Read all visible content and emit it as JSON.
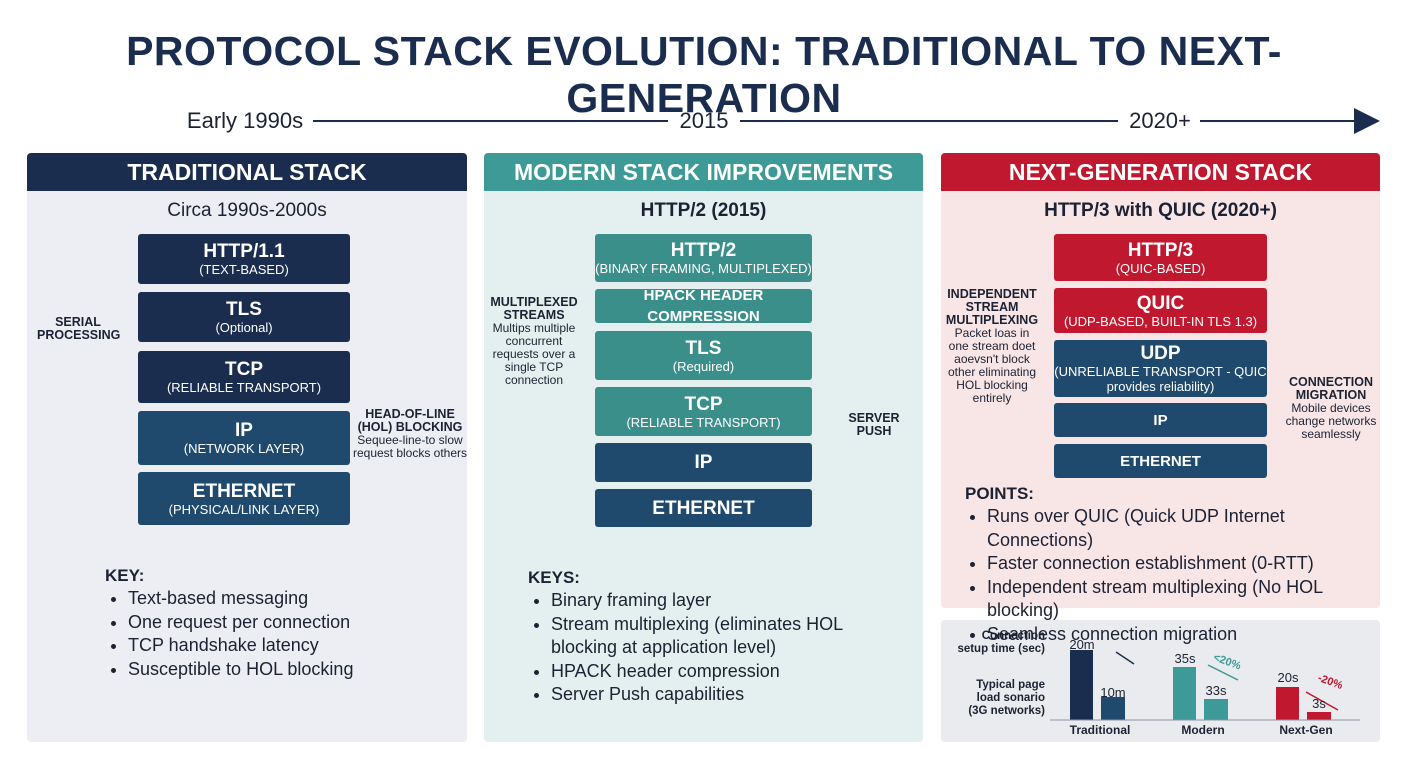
{
  "title": "PROTOCOL STACK EVOLUTION: TRADITIONAL TO NEXT-GENERATION",
  "timeline": [
    "Early 1990s",
    "2015",
    "2020+"
  ],
  "panels": [
    {
      "header": "TRADITIONAL STACK",
      "subtitle": "Circa 1990s-2000s",
      "layers": [
        {
          "name": "HTTP/1.1",
          "desc": "(TEXT-BASED)"
        },
        {
          "name": "TLS",
          "desc": "(Optional)"
        },
        {
          "name": "TCP",
          "desc": "(RELIABLE TRANSPORT)"
        },
        {
          "name": "IP",
          "desc": "(NETWORK LAYER)"
        },
        {
          "name": "ETHERNET",
          "desc": "(PHYSICAL/LINK LAYER)"
        }
      ],
      "left_note": {
        "title": "SERIAL PROCESSING"
      },
      "right_note": {
        "title": "HEAD-OF-LINE (HOL) BLOCKING",
        "text": "Sequee-line-to slow request blocks others"
      },
      "key_title": "KEY:",
      "key_items": [
        "Text-based messaging",
        "One request per connection",
        "TCP handshake latency",
        "Susceptible to HOL blocking"
      ]
    },
    {
      "header": "MODERN STACK IMPROVEMENTS",
      "subtitle": "HTTP/2 (2015)",
      "layers": [
        {
          "name": "HTTP/2",
          "desc": "(BINARY FRAMING, MULTIPLEXED)"
        },
        {
          "name": "HPACK HEADER COMPRESSION"
        },
        {
          "name": "TLS",
          "desc": "(Required)"
        },
        {
          "name": "TCP",
          "desc": "(RELIABLE TRANSPORT)"
        },
        {
          "name": "IP"
        },
        {
          "name": "ETHERNET"
        }
      ],
      "left_note": {
        "title": "MULTIPLEXED STREAMS",
        "text": "Multips multiple concurrent requests over a single TCP connection"
      },
      "right_note": {
        "title": "SERVER PUSH"
      },
      "key_title": "KEYS:",
      "key_items": [
        "Binary framing layer",
        "Stream multiplexing (eliminates HOL blocking at application level)",
        "HPACK header compression",
        "Server Push capabilities"
      ]
    },
    {
      "header": "NEXT-GENERATION STACK",
      "subtitle": "HTTP/3 with QUIC (2020+)",
      "layers": [
        {
          "name": "HTTP/3",
          "desc": "(QUIC-BASED)"
        },
        {
          "name": "QUIC",
          "desc": "(UDP-BASED, BUILT-IN TLS 1.3)"
        },
        {
          "name": "UDP",
          "desc": "(UNRELIABLE TRANSPORT - QUIC provides reliability)"
        },
        {
          "name": "IP"
        },
        {
          "name": "ETHERNET"
        }
      ],
      "left_note": {
        "title": "INDEPENDENT STREAM MULTIPLEXING",
        "text": "Packet loas in one stream doet aoevsn't block other eliminating HOL blocking entirely"
      },
      "right_note": {
        "title": "CONNECTION MIGRATION",
        "text": "Mobile devices change networks seamlessly"
      },
      "key_title": "POINTS:",
      "key_items": [
        "Runs over QUIC (Quick UDP Internet Connections)",
        "Faster connection establishment (0-RTT)",
        "Independent stream multiplexing (No HOL blocking)",
        "Seamless connection migration"
      ]
    }
  ],
  "comparison": {
    "row_labels": [
      "Connection setup time (sec)",
      "Typical page load sonario (3G networks)"
    ],
    "groups": [
      {
        "name": "Traditional",
        "labels": [
          "20m",
          "10m"
        ]
      },
      {
        "name": "Modern",
        "labels": [
          "35s",
          "33s"
        ],
        "change": "<20%"
      },
      {
        "name": "Next-Gen",
        "labels": [
          "20s",
          "3s"
        ],
        "change": "-20%"
      }
    ]
  }
}
